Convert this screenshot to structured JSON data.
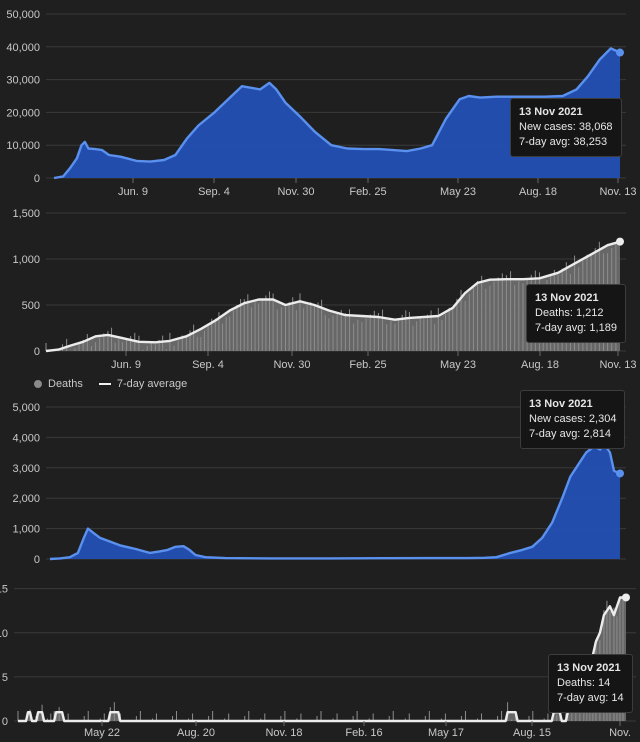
{
  "legend": {
    "deaths": "Deaths",
    "avg": "7-day average"
  },
  "colors": {
    "blue": "#2450b4",
    "blueLine": "#5a90ee",
    "gray": "#6c6c6c",
    "white": "#ececec",
    "grid": "#3a3a3a"
  },
  "tooltips": [
    {
      "title": "13 Nov 2021",
      "l1": "New cases: 38,068",
      "l2": "7-day avg: 38,253"
    },
    {
      "title": "13 Nov 2021",
      "l1": "Deaths: 1,212",
      "l2": "7-day avg: 1,189"
    },
    {
      "title": "13 Nov 2021",
      "l1": "New cases: 2,304",
      "l2": "7-day avg: 2,814"
    },
    {
      "title": "13 Nov 2021",
      "l1": "Deaths: 14",
      "l2": "7-day avg: 14"
    }
  ],
  "chart_data": [
    {
      "type": "area",
      "yticks": [
        "0",
        "10,000",
        "20,000",
        "30,000",
        "40,000",
        "50,000"
      ],
      "ylim": [
        0,
        50000
      ],
      "xticks": [
        "Jun. 9",
        "Sep. 4",
        "Nov. 30",
        "Feb. 25",
        "May 23",
        "Aug. 18",
        "Nov. 13"
      ],
      "series_avg": [
        [
          0,
          0
        ],
        [
          8,
          500
        ],
        [
          14,
          3000
        ],
        [
          20,
          6000
        ],
        [
          24,
          10000
        ],
        [
          27,
          11000
        ],
        [
          30,
          9000
        ],
        [
          36,
          8800
        ],
        [
          42,
          8500
        ],
        [
          48,
          7000
        ],
        [
          58,
          6500
        ],
        [
          72,
          5200
        ],
        [
          84,
          5000
        ],
        [
          96,
          5500
        ],
        [
          106,
          7000
        ],
        [
          116,
          12000
        ],
        [
          126,
          16000
        ],
        [
          140,
          20000
        ],
        [
          152,
          24000
        ],
        [
          164,
          28000
        ],
        [
          172,
          27500
        ],
        [
          180,
          27000
        ],
        [
          188,
          29000
        ],
        [
          194,
          27000
        ],
        [
          202,
          23000
        ],
        [
          214,
          19000
        ],
        [
          228,
          14000
        ],
        [
          242,
          10000
        ],
        [
          256,
          9000
        ],
        [
          270,
          8800
        ],
        [
          284,
          8800
        ],
        [
          296,
          8500
        ],
        [
          308,
          8200
        ],
        [
          320,
          9000
        ],
        [
          330,
          10000
        ],
        [
          342,
          18000
        ],
        [
          354,
          24000
        ],
        [
          362,
          25000
        ],
        [
          372,
          24500
        ],
        [
          386,
          24800
        ],
        [
          400,
          24800
        ],
        [
          416,
          24800
        ],
        [
          428,
          24800
        ],
        [
          444,
          25000
        ],
        [
          456,
          27000
        ],
        [
          466,
          31000
        ],
        [
          476,
          36000
        ],
        [
          486,
          39500
        ],
        [
          494,
          38253
        ]
      ],
      "last": 38253
    },
    {
      "type": "area",
      "yticks": [
        "0",
        "500",
        "1,000",
        "1,500"
      ],
      "ylim": [
        0,
        1500
      ],
      "xticks": [
        "Jun. 9",
        "Sep. 4",
        "Nov. 30",
        "Feb. 25",
        "May 23",
        "Aug. 18",
        "Nov. 13"
      ],
      "series_avg": [
        [
          0,
          0
        ],
        [
          12,
          15
        ],
        [
          24,
          60
        ],
        [
          36,
          100
        ],
        [
          48,
          160
        ],
        [
          60,
          175
        ],
        [
          74,
          140
        ],
        [
          90,
          100
        ],
        [
          106,
          95
        ],
        [
          120,
          110
        ],
        [
          136,
          160
        ],
        [
          150,
          240
        ],
        [
          164,
          330
        ],
        [
          178,
          440
        ],
        [
          192,
          520
        ],
        [
          206,
          560
        ],
        [
          220,
          560
        ],
        [
          232,
          500
        ],
        [
          246,
          540
        ],
        [
          260,
          500
        ],
        [
          274,
          440
        ],
        [
          290,
          390
        ],
        [
          306,
          380
        ],
        [
          322,
          370
        ],
        [
          338,
          340
        ],
        [
          352,
          360
        ],
        [
          366,
          370
        ],
        [
          380,
          380
        ],
        [
          394,
          470
        ],
        [
          406,
          630
        ],
        [
          418,
          740
        ],
        [
          430,
          775
        ],
        [
          446,
          780
        ],
        [
          462,
          780
        ],
        [
          478,
          790
        ],
        [
          496,
          850
        ],
        [
          512,
          950
        ],
        [
          528,
          1050
        ],
        [
          544,
          1150
        ],
        [
          556,
          1189
        ]
      ],
      "last": 1189
    },
    {
      "type": "area",
      "yticks": [
        "0",
        "1,000",
        "2,000",
        "3,000",
        "4,000",
        "5,000"
      ],
      "ylim": [
        0,
        5000
      ],
      "xticks": [],
      "series_avg": [
        [
          0,
          0
        ],
        [
          10,
          20
        ],
        [
          20,
          60
        ],
        [
          28,
          200
        ],
        [
          34,
          700
        ],
        [
          38,
          1000
        ],
        [
          44,
          850
        ],
        [
          50,
          700
        ],
        [
          58,
          600
        ],
        [
          70,
          450
        ],
        [
          86,
          330
        ],
        [
          100,
          200
        ],
        [
          110,
          250
        ],
        [
          118,
          300
        ],
        [
          126,
          400
        ],
        [
          134,
          420
        ],
        [
          140,
          300
        ],
        [
          146,
          130
        ],
        [
          156,
          60
        ],
        [
          176,
          30
        ],
        [
          220,
          20
        ],
        [
          280,
          20
        ],
        [
          340,
          25
        ],
        [
          380,
          30
        ],
        [
          420,
          30
        ],
        [
          436,
          40
        ],
        [
          448,
          60
        ],
        [
          462,
          200
        ],
        [
          474,
          300
        ],
        [
          484,
          400
        ],
        [
          494,
          700
        ],
        [
          504,
          1200
        ],
        [
          514,
          2000
        ],
        [
          522,
          2700
        ],
        [
          530,
          3100
        ],
        [
          538,
          3500
        ],
        [
          546,
          3700
        ],
        [
          552,
          3600
        ],
        [
          556,
          3800
        ],
        [
          562,
          3500
        ],
        [
          566,
          2900
        ],
        [
          572,
          2814
        ]
      ],
      "last": 2814
    },
    {
      "type": "bar",
      "yticks": [
        "0",
        "5",
        "10",
        "15"
      ],
      "ylim": [
        0,
        17
      ],
      "xticks": [
        "May 22",
        "Aug. 20",
        "Nov. 18",
        "Feb. 16",
        "May 17",
        "Aug. 15",
        "Nov."
      ],
      "series_avg": [
        [
          0,
          0
        ],
        [
          8,
          0
        ],
        [
          10,
          1
        ],
        [
          12,
          1
        ],
        [
          14,
          0
        ],
        [
          18,
          0
        ],
        [
          20,
          1
        ],
        [
          24,
          1
        ],
        [
          26,
          0
        ],
        [
          36,
          0
        ],
        [
          38,
          1
        ],
        [
          44,
          1
        ],
        [
          46,
          0
        ],
        [
          90,
          0
        ],
        [
          92,
          1
        ],
        [
          100,
          1
        ],
        [
          102,
          0
        ],
        [
          486,
          0
        ],
        [
          488,
          1
        ],
        [
          496,
          1
        ],
        [
          498,
          0
        ],
        [
          532,
          0
        ],
        [
          534,
          1
        ],
        [
          540,
          1
        ],
        [
          542,
          0
        ],
        [
          546,
          0
        ],
        [
          548,
          1
        ],
        [
          556,
          2
        ],
        [
          564,
          4
        ],
        [
          570,
          6
        ],
        [
          576,
          9
        ],
        [
          580,
          10
        ],
        [
          584,
          12
        ],
        [
          590,
          13
        ],
        [
          594,
          12
        ],
        [
          600,
          14
        ],
        [
          606,
          14
        ]
      ],
      "last": 14
    }
  ]
}
